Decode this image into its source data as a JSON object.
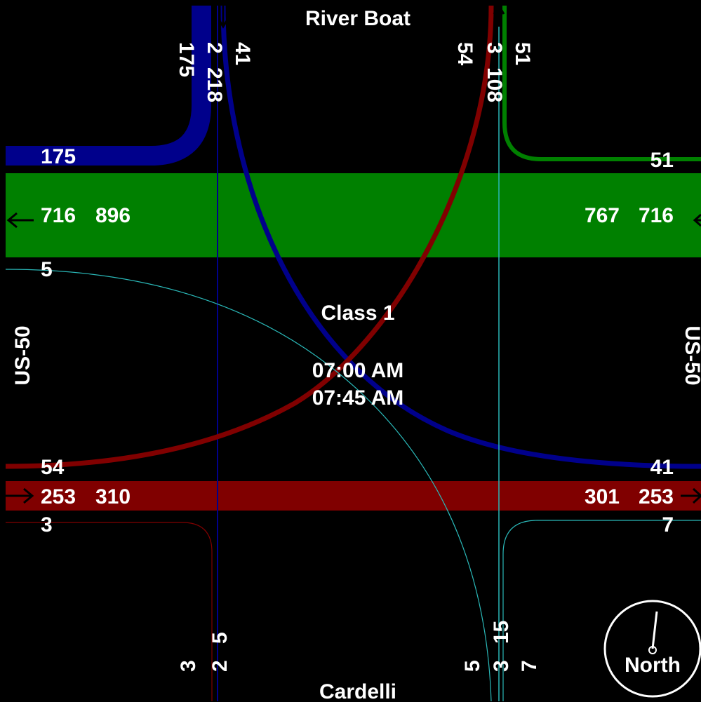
{
  "roads": {
    "north": "River Boat",
    "south": "Cardelli",
    "west": "US-50",
    "east": "US-50"
  },
  "vehicle_class": "Class 1",
  "time_start": "07:00 AM",
  "time_end": "07:45 AM",
  "compass_label": "North",
  "colors": {
    "blue": "#00008B",
    "green": "#008000",
    "red": "#800000",
    "cyan": "#2AB8B8",
    "background": "#000000"
  },
  "north_approach": {
    "sb_right_volume": "175",
    "sb_through_volume": "2",
    "sb_left_volume": "41",
    "sb_total": "218"
  },
  "north_exit": {
    "nb_from_left": "54",
    "nb_through": "3",
    "nb_from_right": "51",
    "nb_total": "108"
  },
  "west_side": {
    "wb_exit_total": "716",
    "wb_leg_total": "896",
    "sb_right_in": "175",
    "sb_left_out": "5",
    "eb_left_in": "54",
    "eb_approach_total": "253",
    "eb_leg_total": "310",
    "eb_right_out": "3"
  },
  "east_side": {
    "wb_right_in": "51",
    "wb_leg_total": "767",
    "wb_approach_total": "716",
    "sb_left_in": "41",
    "eb_leg_total": "301",
    "eb_exit_total": "253",
    "nb_right_in": "7"
  },
  "south_approach": {
    "nb_left_volume": "5",
    "nb_through_volume": "3",
    "nb_right_volume": "7",
    "nb_total": "15"
  },
  "south_exit": {
    "sb_from_right": "3",
    "sb_through": "2",
    "sb_total": "5"
  }
}
